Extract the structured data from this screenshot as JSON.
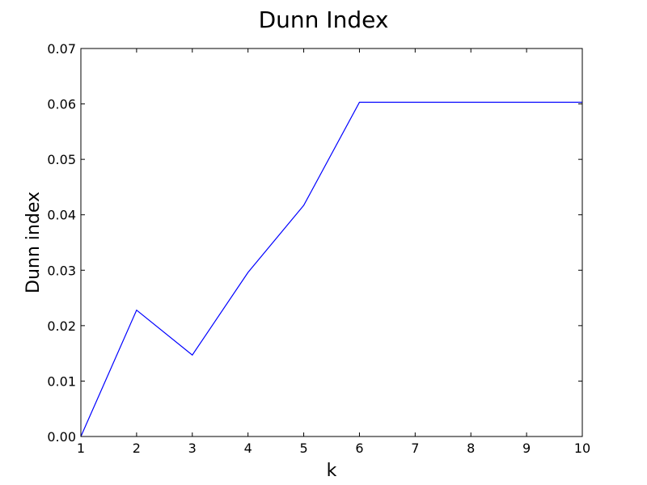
{
  "chart_data": {
    "type": "line",
    "title": "Dunn Index",
    "xlabel": "k",
    "ylabel": "Dunn index",
    "xlim": [
      1,
      10
    ],
    "ylim": [
      0,
      0.07
    ],
    "x_ticks": [
      "1",
      "2",
      "3",
      "4",
      "5",
      "6",
      "7",
      "8",
      "9",
      "10"
    ],
    "y_ticks": [
      "0.00",
      "0.01",
      "0.02",
      "0.03",
      "0.04",
      "0.05",
      "0.06",
      "0.07"
    ],
    "grid": false,
    "series": [
      {
        "color": "#0000ff",
        "x": [
          1,
          2,
          3,
          4,
          5,
          6,
          7,
          8,
          9,
          10
        ],
        "y": [
          0.0,
          0.0228,
          0.0147,
          0.0296,
          0.0417,
          0.0603,
          0.0603,
          0.0603,
          0.0603,
          0.0603
        ]
      }
    ]
  }
}
